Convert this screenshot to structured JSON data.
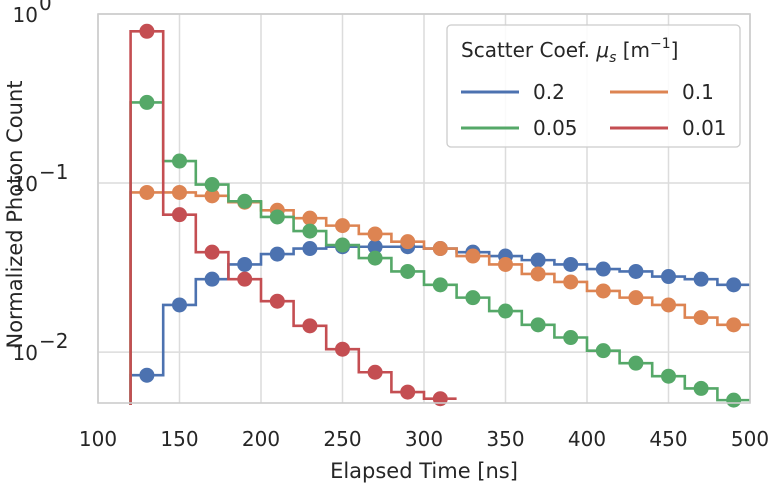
{
  "chart_data": {
    "type": "line",
    "xlabel": "Elapsed Time [ns]",
    "ylabel": "Normalized Photon Count",
    "x_ticks": [
      100,
      150,
      200,
      250,
      300,
      350,
      400,
      450,
      500
    ],
    "y_ticks": [
      {
        "value": 0.01,
        "base": "10",
        "exp": "−2"
      },
      {
        "value": 0.1,
        "base": "10",
        "exp": "−1"
      },
      {
        "value": 1,
        "base": "10",
        "exp": "0"
      }
    ],
    "xlim": [
      100,
      500
    ],
    "ylim": [
      0.005,
      1.0
    ],
    "yscale": "log",
    "grid": true,
    "legend": {
      "title_prefix": "Scatter Coef. ",
      "title_mu": "μ",
      "title_sub": "s",
      "title_unit_open": " [m",
      "title_unit_exp": "−1",
      "title_unit_close": "]",
      "placement": "top-right",
      "columns": 2
    },
    "bin_edges": [
      120,
      140,
      160,
      180,
      200,
      220,
      240,
      260,
      280,
      300,
      320,
      340,
      360,
      380,
      400,
      420,
      440,
      460,
      480,
      500
    ],
    "series": [
      {
        "name": "0.2",
        "color": "#4c72b0",
        "x": [
          130,
          150,
          170,
          190,
          210,
          230,
          250,
          270,
          290,
          310,
          330,
          350,
          370,
          390,
          410,
          430,
          450,
          470,
          490
        ],
        "values": [
          0.0073,
          0.019,
          0.027,
          0.033,
          0.038,
          0.041,
          0.042,
          0.042,
          0.042,
          0.041,
          0.039,
          0.037,
          0.035,
          0.033,
          0.031,
          0.03,
          0.028,
          0.027,
          0.025
        ]
      },
      {
        "name": "0.1",
        "color": "#dd8452",
        "x": [
          130,
          150,
          170,
          190,
          210,
          230,
          250,
          270,
          290,
          310,
          330,
          350,
          370,
          390,
          410,
          430,
          450,
          470,
          490
        ],
        "values": [
          0.088,
          0.088,
          0.084,
          0.077,
          0.069,
          0.062,
          0.056,
          0.05,
          0.045,
          0.041,
          0.037,
          0.033,
          0.029,
          0.026,
          0.023,
          0.021,
          0.019,
          0.016,
          0.0145
        ]
      },
      {
        "name": "0.05",
        "color": "#55a868",
        "x": [
          130,
          150,
          170,
          190,
          210,
          230,
          250,
          270,
          290,
          310,
          330,
          350,
          370,
          390,
          410,
          430,
          450,
          470,
          490
        ],
        "values": [
          0.3,
          0.135,
          0.098,
          0.078,
          0.063,
          0.052,
          0.043,
          0.036,
          0.03,
          0.025,
          0.021,
          0.0175,
          0.0145,
          0.0122,
          0.0102,
          0.0086,
          0.0072,
          0.0061,
          0.0052
        ]
      },
      {
        "name": "0.01",
        "color": "#c44e52",
        "x": [
          130,
          150,
          170,
          190,
          210,
          230,
          250,
          270,
          290,
          310
        ],
        "values": [
          0.79,
          0.065,
          0.039,
          0.027,
          0.02,
          0.0143,
          0.0104,
          0.0076,
          0.0058,
          0.0053
        ]
      }
    ]
  }
}
